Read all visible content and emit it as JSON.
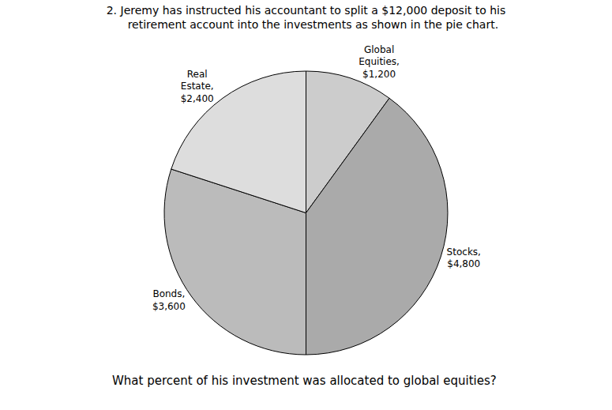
{
  "chart_data": {
    "type": "pie",
    "title": "2. Jeremy has instructed his accountant to split a $12,000 deposit to his\n    retirement account into the investments as shown in the pie chart.",
    "categories": [
      "Global\nEquities,\n$1,200",
      "Stocks,\n$4,800",
      "Bonds,\n$3,600",
      "Real\nEstate,\n$2,400"
    ],
    "values": [
      1200,
      4800,
      3600,
      2400
    ],
    "colors": [
      "#cccccc",
      "#aaaaaa",
      "#bbbbbb",
      "#dddddd"
    ],
    "annotations": [
      "What percent of his investment was allocated to global equities?"
    ]
  }
}
